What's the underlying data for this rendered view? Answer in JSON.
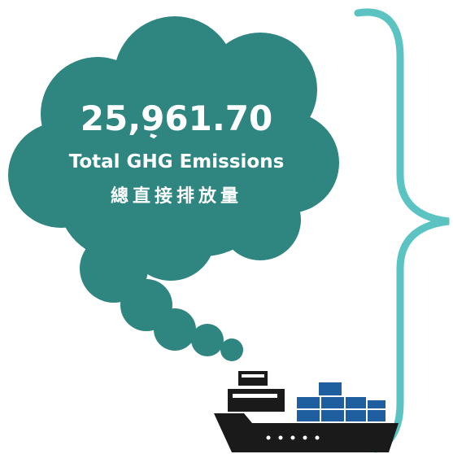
{
  "value": "25,961.70",
  "label": "Total GHG Emissions",
  "label_zh": "總直接排放量"
}
